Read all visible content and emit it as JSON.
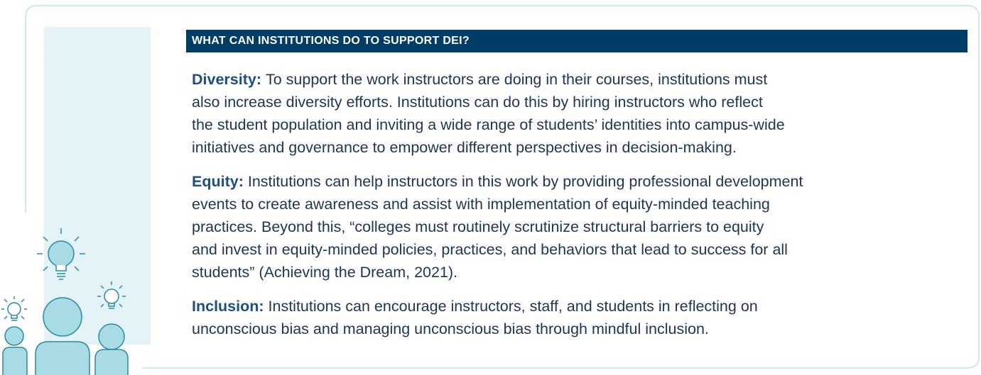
{
  "header": {
    "title": "WHAT CAN INSTITUTIONS DO TO SUPPORT DEI?"
  },
  "sections": [
    {
      "term": "Diversity:",
      "lines": [
        "To support the work instructors are doing in their courses, institutions must",
        "also increase diversity efforts. Institutions can do this by hiring instructors who reflect",
        "the student population and inviting a wide range of students’ identities into campus-wide",
        "initiatives and governance to empower different perspectives in decision-making."
      ]
    },
    {
      "term": "Equity:",
      "lines": [
        "Institutions can help instructors in this work by providing professional development",
        "events to create awareness and assist with implementation of equity-minded teaching",
        "practices. Beyond this, “colleges must routinely scrutinize structural barriers to equity",
        "and invest in equity-minded policies, practices, and behaviors that lead to success for all",
        "students” (Achieving the Dream, 2021)."
      ]
    },
    {
      "term": "Inclusion:",
      "lines": [
        "Institutions can encourage instructors, staff, and students in reflecting on",
        "unconscious bias and managing unconscious bias through mindful inclusion."
      ]
    }
  ]
}
